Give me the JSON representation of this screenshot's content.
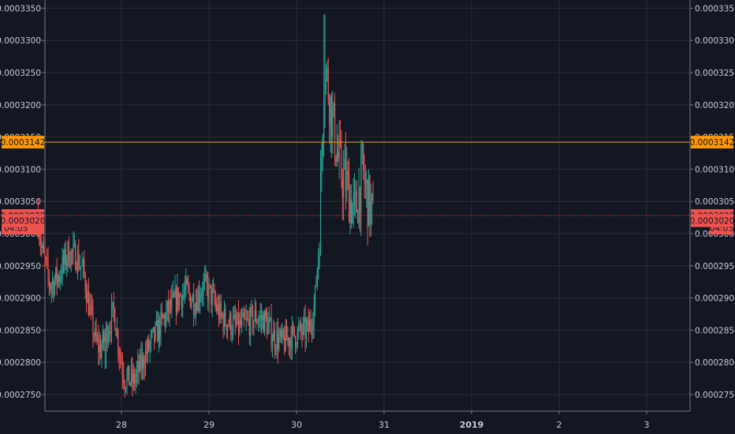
{
  "chart_data": {
    "type": "candlestick",
    "ylim": [
      0.0002725,
      0.000338
    ],
    "y_ticks": [
      "0.0002750",
      "0.0002800",
      "0.0002850",
      "0.0002900",
      "0.0002950",
      "0.0003000",
      "0.0003050",
      "0.0003100",
      "0.0003150",
      "0.0003200",
      "0.0003250",
      "0.0003300",
      "0.0003350"
    ],
    "x_ticks": [
      {
        "label": "28",
        "day": 1,
        "bold": false
      },
      {
        "label": "29",
        "day": 2,
        "bold": false
      },
      {
        "label": "30",
        "day": 3,
        "bold": false
      },
      {
        "label": "31",
        "day": 4,
        "bold": false
      },
      {
        "label": "2019",
        "day": 5,
        "bold": true
      },
      {
        "label": "2",
        "day": 6,
        "bold": false
      },
      {
        "label": "3",
        "day": 7,
        "bold": false
      }
    ],
    "x_range_days": [
      0.05,
      7.55
    ],
    "grid": true,
    "candle_interval_days": 0.0125,
    "price_path": [
      [
        0.05,
        0.0003035
      ],
      [
        0.1,
        0.0002975
      ],
      [
        0.2,
        0.000292
      ],
      [
        0.3,
        0.0002935
      ],
      [
        0.4,
        0.000297
      ],
      [
        0.5,
        0.0002965
      ],
      [
        0.58,
        0.000294
      ],
      [
        0.65,
        0.000288
      ],
      [
        0.72,
        0.000283
      ],
      [
        0.78,
        0.000282
      ],
      [
        0.85,
        0.000285
      ],
      [
        0.93,
        0.000288
      ],
      [
        0.98,
        0.0002825
      ],
      [
        1.05,
        0.0002775
      ],
      [
        1.15,
        0.000277
      ],
      [
        1.25,
        0.00028
      ],
      [
        1.35,
        0.000283
      ],
      [
        1.45,
        0.0002855
      ],
      [
        1.55,
        0.000288
      ],
      [
        1.65,
        0.00029
      ],
      [
        1.75,
        0.000291
      ],
      [
        1.85,
        0.0002895
      ],
      [
        1.95,
        0.000292
      ],
      [
        2.05,
        0.00029
      ],
      [
        2.15,
        0.000287
      ],
      [
        2.25,
        0.000286
      ],
      [
        2.35,
        0.0002855
      ],
      [
        2.45,
        0.000286
      ],
      [
        2.55,
        0.000287
      ],
      [
        2.65,
        0.0002865
      ],
      [
        2.75,
        0.000284
      ],
      [
        2.85,
        0.000283
      ],
      [
        2.95,
        0.000284
      ],
      [
        3.05,
        0.0002845
      ],
      [
        3.15,
        0.000285
      ],
      [
        3.22,
        0.000289
      ],
      [
        3.27,
        0.000299
      ],
      [
        3.3,
        0.000312
      ],
      [
        3.33,
        0.000327
      ],
      [
        3.38,
        0.000322
      ],
      [
        3.43,
        0.000317
      ],
      [
        3.48,
        0.000312
      ],
      [
        3.53,
        0.000309
      ],
      [
        3.58,
        0.000308
      ],
      [
        3.63,
        0.000305
      ],
      [
        3.68,
        0.000303
      ],
      [
        3.72,
        0.000306
      ],
      [
        3.76,
        0.00031
      ],
      [
        3.8,
        0.000307
      ],
      [
        3.85,
        0.000304
      ],
      [
        3.88,
        0.0003028
      ]
    ],
    "spikes": [
      {
        "day": 3.325,
        "high": 0.000334
      },
      {
        "day": 3.74,
        "high": 0.0003145
      },
      {
        "day": 1.1,
        "low": 0.0002762
      },
      {
        "day": 0.82,
        "low": 0.000279
      }
    ],
    "up_color": "#26a69a",
    "down_color": "#ef5350",
    "horizontal_line": {
      "price": 0.0003142,
      "label": "0.0003142",
      "color": "#ff9800"
    },
    "last_price": {
      "price": 0.0003028,
      "label": "0.0003028",
      "countdown": "04:05",
      "color": "#ef5350"
    },
    "low_tag": {
      "price": 0.000302,
      "label": "0.0003020",
      "color": "#ef5350"
    }
  },
  "colors": {
    "background": "#131722",
    "grid": "#2a2e39",
    "axis": "#787b86",
    "text": "#c9ccd6"
  }
}
